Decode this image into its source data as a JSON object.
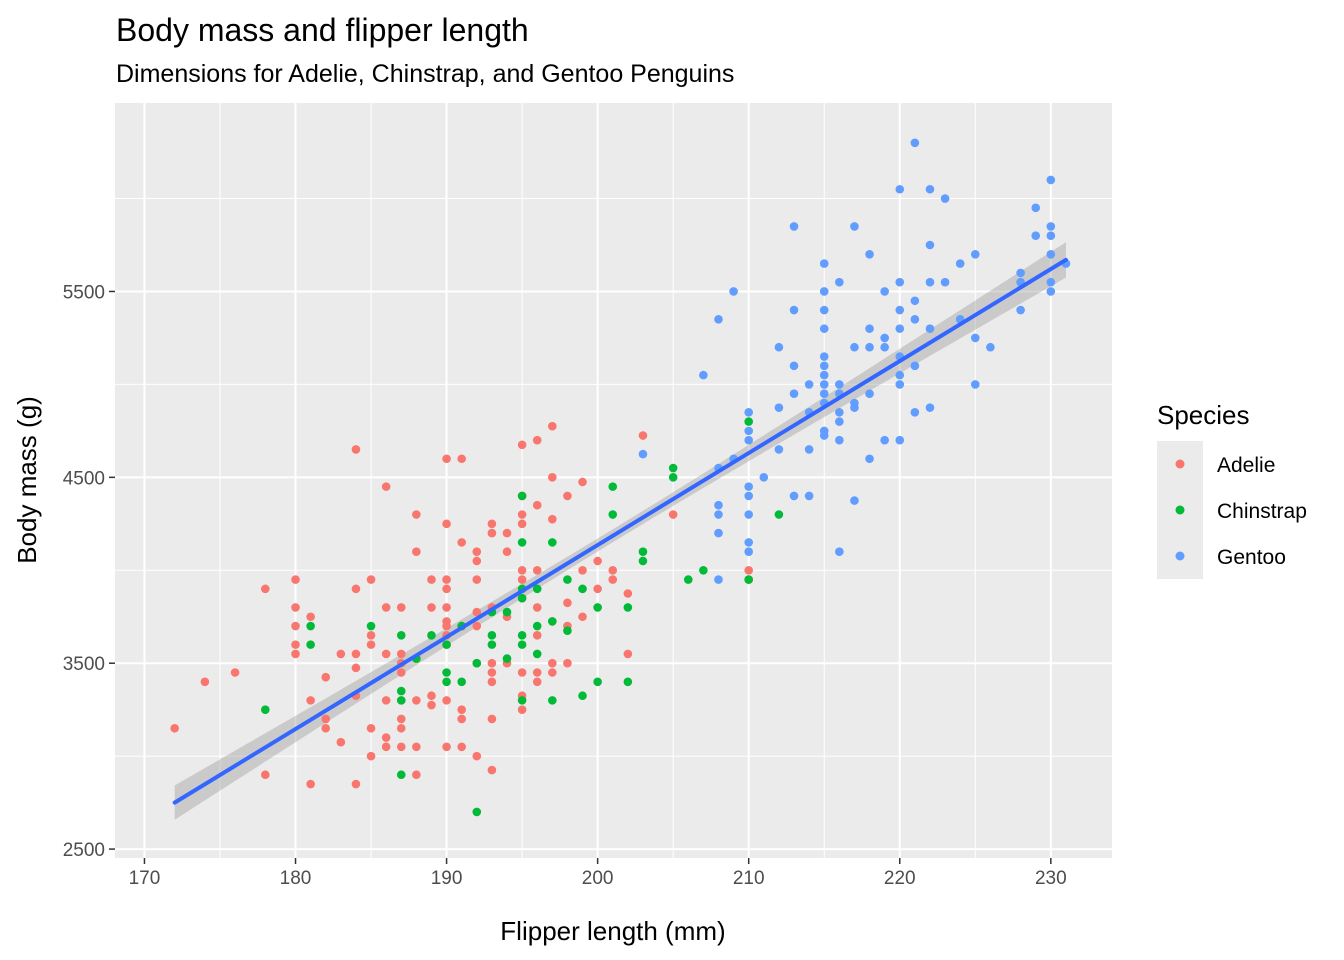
{
  "chart_data": {
    "type": "scatter",
    "title": "Body mass and flipper length",
    "subtitle": "Dimensions for Adelie, Chinstrap, and Gentoo Penguins",
    "xlabel": "Flipper length (mm)",
    "ylabel": "Body mass (g)",
    "xlim": [
      168.05,
      234.05
    ],
    "ylim": [
      2452,
      6514
    ],
    "x_ticks": [
      170,
      180,
      190,
      200,
      210,
      220,
      230
    ],
    "y_ticks": [
      2500,
      3500,
      4500,
      5500
    ],
    "x_tick_labels": [
      "170",
      "180",
      "190",
      "200",
      "210",
      "220",
      "230"
    ],
    "y_tick_labels": [
      "2500",
      "3500",
      "4500",
      "5500"
    ],
    "grid": true,
    "legend": {
      "title": "Species",
      "position": "right"
    },
    "trend_line": {
      "method": "linear",
      "color": "#3366FF",
      "band_color": "#999999",
      "start": [
        172,
        2750
      ],
      "end": [
        231,
        5670
      ],
      "band_halfwidth_ends": 95,
      "band_halfwidth_center": 35,
      "band_center_x": 201
    },
    "series": [
      {
        "name": "Adelie",
        "color": "#F8766D",
        "points": [
          [
            172,
            3150
          ],
          [
            174,
            3400
          ],
          [
            176,
            3450
          ],
          [
            178,
            3900
          ],
          [
            178,
            2900
          ],
          [
            180,
            3950
          ],
          [
            180,
            3800
          ],
          [
            180,
            3700
          ],
          [
            180,
            3600
          ],
          [
            180,
            3550
          ],
          [
            181,
            3750
          ],
          [
            181,
            3300
          ],
          [
            181,
            2850
          ],
          [
            182,
            3425
          ],
          [
            182,
            3200
          ],
          [
            182,
            3150
          ],
          [
            183,
            3550
          ],
          [
            183,
            3075
          ],
          [
            184,
            4650
          ],
          [
            184,
            3900
          ],
          [
            184,
            3550
          ],
          [
            184,
            3475
          ],
          [
            184,
            3325
          ],
          [
            184,
            2850
          ],
          [
            185,
            3950
          ],
          [
            185,
            3650
          ],
          [
            185,
            3600
          ],
          [
            185,
            3150
          ],
          [
            185,
            3000
          ],
          [
            186,
            4450
          ],
          [
            186,
            3800
          ],
          [
            186,
            3550
          ],
          [
            186,
            3300
          ],
          [
            186,
            3100
          ],
          [
            186,
            3050
          ],
          [
            187,
            3800
          ],
          [
            187,
            3550
          ],
          [
            187,
            3500
          ],
          [
            187,
            3450
          ],
          [
            187,
            3300
          ],
          [
            187,
            3200
          ],
          [
            187,
            3150
          ],
          [
            187,
            3050
          ],
          [
            188,
            4300
          ],
          [
            188,
            4100
          ],
          [
            188,
            3525
          ],
          [
            188,
            3300
          ],
          [
            188,
            2900
          ],
          [
            188,
            3050
          ],
          [
            189,
            3950
          ],
          [
            189,
            3800
          ],
          [
            189,
            3325
          ],
          [
            189,
            3275
          ],
          [
            190,
            4600
          ],
          [
            190,
            4250
          ],
          [
            190,
            3950
          ],
          [
            190,
            3900
          ],
          [
            190,
            3800
          ],
          [
            190,
            3725
          ],
          [
            190,
            3700
          ],
          [
            190,
            3650
          ],
          [
            190,
            3600
          ],
          [
            190,
            3300
          ],
          [
            190,
            3050
          ],
          [
            191,
            4600
          ],
          [
            191,
            4150
          ],
          [
            191,
            3700
          ],
          [
            191,
            3250
          ],
          [
            191,
            3200
          ],
          [
            191,
            3050
          ],
          [
            192,
            4100
          ],
          [
            192,
            4050
          ],
          [
            192,
            3950
          ],
          [
            192,
            3775
          ],
          [
            192,
            3700
          ],
          [
            192,
            3500
          ],
          [
            192,
            3000
          ],
          [
            193,
            4250
          ],
          [
            193,
            4200
          ],
          [
            193,
            3800
          ],
          [
            193,
            3500
          ],
          [
            193,
            3450
          ],
          [
            193,
            3400
          ],
          [
            193,
            3200
          ],
          [
            193,
            2925
          ],
          [
            194,
            4200
          ],
          [
            194,
            4100
          ],
          [
            194,
            3750
          ],
          [
            194,
            3500
          ],
          [
            195,
            4675
          ],
          [
            195,
            4400
          ],
          [
            195,
            4300
          ],
          [
            195,
            4250
          ],
          [
            195,
            4000
          ],
          [
            195,
            3950
          ],
          [
            195,
            3850
          ],
          [
            195,
            3450
          ],
          [
            195,
            3325
          ],
          [
            195,
            3250
          ],
          [
            196,
            4700
          ],
          [
            196,
            4350
          ],
          [
            196,
            4000
          ],
          [
            196,
            3800
          ],
          [
            196,
            3650
          ],
          [
            196,
            3450
          ],
          [
            196,
            3400
          ],
          [
            197,
            4775
          ],
          [
            197,
            4500
          ],
          [
            197,
            4275
          ],
          [
            197,
            3725
          ],
          [
            197,
            3500
          ],
          [
            197,
            3450
          ],
          [
            198,
            4400
          ],
          [
            198,
            3825
          ],
          [
            198,
            3700
          ],
          [
            198,
            3500
          ],
          [
            199,
            4475
          ],
          [
            199,
            4000
          ],
          [
            199,
            3750
          ],
          [
            200,
            4050
          ],
          [
            200,
            3900
          ],
          [
            201,
            4000
          ],
          [
            201,
            3950
          ],
          [
            202,
            3875
          ],
          [
            202,
            3550
          ],
          [
            203,
            4725
          ],
          [
            205,
            4300
          ],
          [
            210,
            4000
          ],
          [
            210,
            3950
          ]
        ]
      },
      {
        "name": "Chinstrap",
        "color": "#00BA38",
        "points": [
          [
            178,
            3250
          ],
          [
            181,
            3700
          ],
          [
            181,
            3600
          ],
          [
            185,
            3700
          ],
          [
            187,
            3650
          ],
          [
            187,
            3350
          ],
          [
            187,
            3300
          ],
          [
            187,
            2900
          ],
          [
            188,
            3525
          ],
          [
            189,
            3650
          ],
          [
            190,
            3600
          ],
          [
            190,
            3450
          ],
          [
            190,
            3400
          ],
          [
            191,
            3700
          ],
          [
            191,
            3400
          ],
          [
            192,
            3500
          ],
          [
            192,
            2700
          ],
          [
            193,
            3775
          ],
          [
            193,
            3650
          ],
          [
            193,
            3600
          ],
          [
            194,
            3525
          ],
          [
            194,
            3775
          ],
          [
            195,
            4400
          ],
          [
            195,
            4150
          ],
          [
            195,
            3900
          ],
          [
            195,
            3850
          ],
          [
            195,
            3650
          ],
          [
            195,
            3600
          ],
          [
            195,
            3300
          ],
          [
            196,
            3900
          ],
          [
            196,
            3550
          ],
          [
            196,
            3700
          ],
          [
            197,
            4150
          ],
          [
            197,
            3725
          ],
          [
            197,
            3300
          ],
          [
            198,
            3950
          ],
          [
            198,
            3675
          ],
          [
            199,
            3900
          ],
          [
            199,
            3325
          ],
          [
            200,
            3800
          ],
          [
            200,
            3400
          ],
          [
            201,
            4450
          ],
          [
            201,
            4300
          ],
          [
            202,
            3800
          ],
          [
            202,
            3400
          ],
          [
            203,
            4100
          ],
          [
            203,
            4050
          ],
          [
            205,
            4550
          ],
          [
            205,
            4500
          ],
          [
            206,
            3950
          ],
          [
            207,
            4000
          ],
          [
            210,
            4800
          ],
          [
            210,
            3950
          ],
          [
            212,
            4300
          ]
        ]
      },
      {
        "name": "Gentoo",
        "color": "#619CFF",
        "points": [
          [
            203,
            4625
          ],
          [
            207,
            5050
          ],
          [
            208,
            5350
          ],
          [
            208,
            4550
          ],
          [
            208,
            4350
          ],
          [
            208,
            4300
          ],
          [
            208,
            4200
          ],
          [
            208,
            3950
          ],
          [
            209,
            5500
          ],
          [
            209,
            4600
          ],
          [
            210,
            4850
          ],
          [
            210,
            4750
          ],
          [
            210,
            4700
          ],
          [
            210,
            4450
          ],
          [
            210,
            4400
          ],
          [
            210,
            4300
          ],
          [
            210,
            4150
          ],
          [
            210,
            4100
          ],
          [
            211,
            4500
          ],
          [
            212,
            5200
          ],
          [
            212,
            4875
          ],
          [
            212,
            4650
          ],
          [
            213,
            5850
          ],
          [
            213,
            5400
          ],
          [
            213,
            5100
          ],
          [
            213,
            4950
          ],
          [
            213,
            4400
          ],
          [
            214,
            5000
          ],
          [
            214,
            4850
          ],
          [
            214,
            4650
          ],
          [
            214,
            4400
          ],
          [
            215,
            5650
          ],
          [
            215,
            5500
          ],
          [
            215,
            5400
          ],
          [
            215,
            5300
          ],
          [
            215,
            5150
          ],
          [
            215,
            5100
          ],
          [
            215,
            5050
          ],
          [
            215,
            5000
          ],
          [
            215,
            4950
          ],
          [
            215,
            4900
          ],
          [
            215,
            4750
          ],
          [
            215,
            4725
          ],
          [
            216,
            5550
          ],
          [
            216,
            5000
          ],
          [
            216,
            4950
          ],
          [
            216,
            4850
          ],
          [
            216,
            4800
          ],
          [
            216,
            4700
          ],
          [
            216,
            4100
          ],
          [
            217,
            5850
          ],
          [
            217,
            5200
          ],
          [
            217,
            4875
          ],
          [
            217,
            4900
          ],
          [
            217,
            4375
          ],
          [
            218,
            5700
          ],
          [
            218,
            5300
          ],
          [
            218,
            5200
          ],
          [
            218,
            4950
          ],
          [
            218,
            4600
          ],
          [
            219,
            5500
          ],
          [
            219,
            5250
          ],
          [
            219,
            5200
          ],
          [
            219,
            4700
          ],
          [
            220,
            6050
          ],
          [
            220,
            5550
          ],
          [
            220,
            5400
          ],
          [
            220,
            5300
          ],
          [
            220,
            5150
          ],
          [
            220,
            5050
          ],
          [
            220,
            5000
          ],
          [
            220,
            4700
          ],
          [
            221,
            6300
          ],
          [
            221,
            5450
          ],
          [
            221,
            5350
          ],
          [
            221,
            5100
          ],
          [
            221,
            4850
          ],
          [
            222,
            6050
          ],
          [
            222,
            5750
          ],
          [
            222,
            5550
          ],
          [
            222,
            5300
          ],
          [
            222,
            4875
          ],
          [
            223,
            6000
          ],
          [
            223,
            5550
          ],
          [
            224,
            5650
          ],
          [
            224,
            5350
          ],
          [
            225,
            5700
          ],
          [
            225,
            5250
          ],
          [
            225,
            5000
          ],
          [
            226,
            5200
          ],
          [
            228,
            5600
          ],
          [
            228,
            5550
          ],
          [
            228,
            5400
          ],
          [
            229,
            5950
          ],
          [
            229,
            5800
          ],
          [
            230,
            6100
          ],
          [
            230,
            5850
          ],
          [
            230,
            5800
          ],
          [
            230,
            5700
          ],
          [
            230,
            5550
          ],
          [
            230,
            5500
          ],
          [
            231,
            5650
          ]
        ]
      }
    ]
  }
}
